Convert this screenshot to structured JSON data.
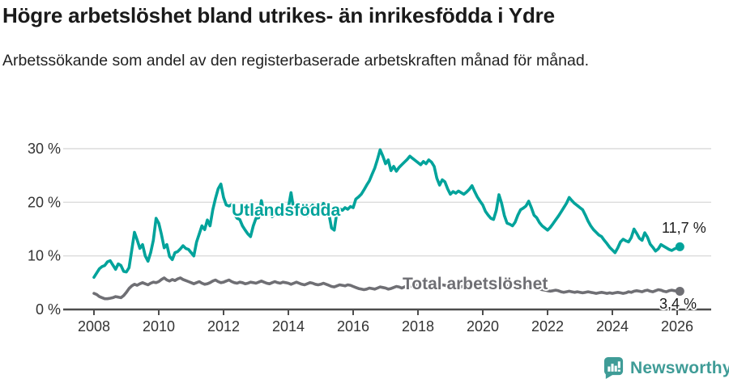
{
  "title": "Högre arbetslöshet bland utrikes- än inrikesfödda i Ydre",
  "subtitle": "Arbetssökande som andel av den registerbaserade arbetskraften månad för månad.",
  "branding": {
    "logo_text": "Newsworthy",
    "logo_color": "#3f9c97"
  },
  "colors": {
    "utlandsfodda_line": "#00a39b",
    "total_line": "#6f6f74",
    "gridline": "#dcdcdc",
    "axis": "#4d4d4d",
    "tick_text": "#333333"
  },
  "chart_data": {
    "type": "line",
    "title": "Högre arbetslöshet bland utrikes- än inrikesfödda i Ydre",
    "subtitle": "Arbetssökande som andel av den registerbaserade arbetskraften månad för månad.",
    "x_interval": "monthly",
    "x_start": "2008-01",
    "x_end": "2026-02",
    "x_ticks": [
      "2008",
      "2010",
      "2012",
      "2014",
      "2016",
      "2018",
      "2020",
      "2022",
      "2024",
      "2026"
    ],
    "y_ticks": [
      "0 %",
      "10 %",
      "20 %",
      "30 %"
    ],
    "y_tick_values": [
      0,
      10,
      20,
      30
    ],
    "ylim": [
      0,
      32
    ],
    "grid": true,
    "legend_position": "inline-labels",
    "series": [
      {
        "name": "Utlandsfödda",
        "color": "#00a39b",
        "end_label": "11,7 %",
        "end_value": 11.7,
        "values": [
          6.0,
          6.8,
          7.6,
          8.0,
          8.2,
          8.9,
          9.1,
          8.3,
          7.5,
          8.5,
          8.2,
          7.1,
          7.0,
          7.8,
          11.1,
          14.4,
          13.0,
          11.4,
          12.1,
          10.0,
          9.0,
          10.6,
          12.9,
          17.0,
          16.1,
          14.0,
          11.5,
          12.1,
          9.9,
          9.3,
          10.6,
          10.8,
          11.3,
          11.9,
          11.4,
          11.2,
          10.6,
          10.0,
          12.6,
          14.1,
          15.6,
          14.9,
          16.7,
          15.6,
          18.6,
          20.7,
          22.5,
          23.4,
          20.9,
          19.5,
          19.3,
          19.6,
          17.8,
          17.0,
          16.8,
          15.6,
          14.8,
          14.1,
          13.6,
          15.6,
          17.0,
          17.1,
          20.3,
          18.0,
          17.5,
          18.9,
          17.3,
          17.8,
          18.0,
          17.5,
          18.3,
          17.8,
          19.0,
          21.8,
          18.6,
          17.8,
          18.4,
          17.6,
          18.0,
          17.5,
          18.8,
          19.5,
          18.9,
          18.4,
          18.6,
          19.8,
          18.9,
          17.9,
          15.2,
          14.8,
          18.3,
          18.8,
          18.5,
          19.0,
          18.7,
          19.2,
          19.0,
          20.6,
          21.0,
          21.5,
          22.3,
          23.2,
          24.0,
          25.2,
          26.4,
          28.0,
          29.8,
          28.6,
          27.2,
          27.9,
          25.9,
          26.7,
          25.8,
          26.5,
          27.0,
          27.5,
          28.0,
          28.6,
          28.2,
          27.8,
          27.4,
          27.0,
          27.6,
          27.2,
          27.9,
          27.5,
          26.7,
          24.5,
          23.2,
          24.2,
          23.8,
          22.5,
          21.5,
          22.0,
          21.7,
          22.1,
          21.8,
          21.5,
          21.9,
          22.4,
          23.1,
          22.0,
          21.0,
          20.2,
          19.5,
          18.3,
          17.6,
          17.0,
          16.8,
          18.5,
          21.4,
          19.8,
          17.5,
          16.1,
          15.9,
          15.6,
          16.3,
          17.6,
          18.6,
          18.9,
          19.3,
          20.2,
          19.0,
          17.6,
          17.1,
          16.2,
          15.6,
          15.2,
          14.8,
          15.3,
          16.0,
          16.7,
          17.4,
          18.2,
          19.0,
          19.8,
          20.9,
          20.3,
          19.8,
          19.4,
          19.0,
          18.6,
          17.6,
          16.5,
          15.6,
          14.9,
          14.4,
          13.9,
          13.6,
          12.9,
          12.3,
          11.6,
          11.1,
          10.6,
          11.5,
          12.6,
          13.1,
          12.8,
          12.6,
          13.4,
          15.0,
          14.2,
          13.3,
          12.9,
          14.3,
          13.5,
          12.2,
          11.6,
          10.9,
          11.3,
          12.1,
          11.8,
          11.5,
          11.2,
          11.0,
          11.3,
          11.5,
          11.7
        ]
      },
      {
        "name": "Total arbetslöshet",
        "color": "#6f6f74",
        "end_label": "3,4 %",
        "end_value": 3.4,
        "values": [
          3.0,
          2.8,
          2.4,
          2.2,
          2.0,
          2.0,
          2.1,
          2.2,
          2.4,
          2.3,
          2.2,
          2.6,
          3.2,
          3.9,
          4.4,
          4.7,
          4.5,
          4.8,
          5.0,
          4.8,
          4.6,
          4.9,
          5.1,
          5.0,
          5.2,
          5.6,
          5.9,
          5.5,
          5.3,
          5.6,
          5.4,
          5.7,
          5.9,
          5.6,
          5.4,
          5.2,
          5.0,
          4.8,
          5.0,
          5.2,
          4.9,
          4.7,
          4.8,
          5.0,
          5.3,
          5.5,
          5.2,
          5.0,
          5.1,
          5.3,
          5.5,
          5.2,
          5.0,
          4.9,
          5.1,
          5.0,
          4.8,
          4.9,
          5.1,
          5.0,
          4.9,
          5.1,
          5.3,
          5.1,
          4.9,
          4.8,
          5.0,
          5.2,
          5.0,
          4.9,
          5.1,
          5.0,
          4.9,
          4.7,
          4.9,
          5.1,
          4.9,
          4.7,
          4.6,
          4.8,
          5.0,
          4.9,
          4.7,
          4.6,
          4.7,
          4.9,
          4.7,
          4.5,
          4.3,
          4.2,
          4.4,
          4.6,
          4.5,
          4.4,
          4.6,
          4.5,
          4.3,
          4.1,
          3.9,
          3.8,
          3.7,
          3.8,
          4.0,
          3.9,
          3.8,
          4.0,
          4.2,
          4.1,
          4.0,
          3.8,
          3.9,
          4.1,
          4.3,
          4.2,
          4.0,
          4.2,
          4.4,
          4.3,
          4.5,
          4.4,
          4.5,
          4.7,
          4.6,
          4.4,
          4.6,
          4.8,
          4.7,
          4.5,
          4.4,
          4.6,
          4.5,
          4.3,
          4.4,
          4.6,
          4.5,
          4.3,
          4.2,
          4.4,
          4.6,
          4.5,
          4.3,
          4.2,
          4.4,
          4.3,
          4.2,
          4.1,
          4.3,
          4.6,
          4.8,
          5.0,
          4.9,
          4.7,
          4.6,
          4.4,
          4.3,
          4.2,
          4.3,
          4.5,
          4.4,
          4.2,
          4.1,
          4.3,
          4.2,
          4.0,
          3.9,
          3.8,
          3.7,
          3.6,
          3.5,
          3.4,
          3.5,
          3.6,
          3.5,
          3.3,
          3.2,
          3.3,
          3.4,
          3.3,
          3.2,
          3.3,
          3.2,
          3.1,
          3.2,
          3.3,
          3.2,
          3.1,
          3.0,
          3.1,
          3.2,
          3.1,
          3.0,
          3.1,
          3.0,
          3.1,
          3.2,
          3.1,
          3.0,
          3.1,
          3.3,
          3.2,
          3.4,
          3.5,
          3.4,
          3.3,
          3.5,
          3.6,
          3.4,
          3.3,
          3.5,
          3.7,
          3.6,
          3.4,
          3.3,
          3.5,
          3.6,
          3.5,
          3.4,
          3.4
        ]
      }
    ]
  }
}
